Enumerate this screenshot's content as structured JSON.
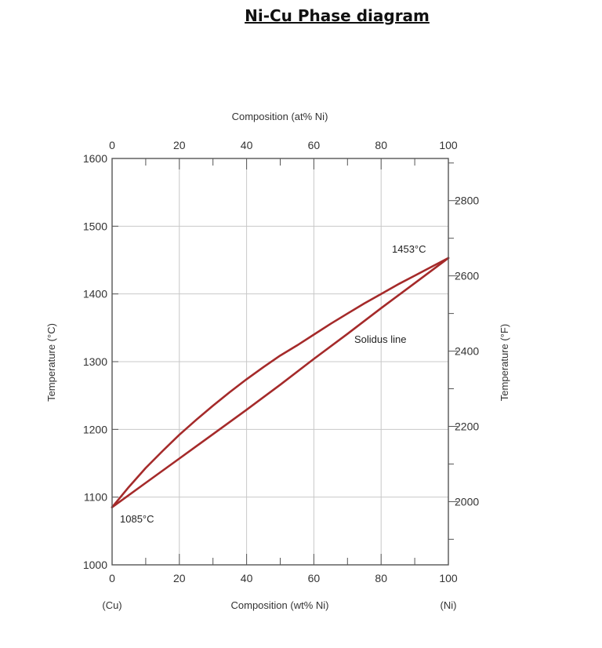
{
  "page": {
    "title": "Ni-Cu Phase diagram"
  },
  "chart_data": {
    "type": "line",
    "title": "Ni-Cu Phase diagram",
    "xlabel_top": "Composition (at% Ni)",
    "xlabel_bottom": "Composition (wt% Ni)",
    "ylabel_left": "Temperature (°C)",
    "ylabel_right": "Temperature (°F)",
    "end_label_left": "(Cu)",
    "end_label_right": "(Ni)",
    "xlim": [
      0,
      100
    ],
    "ylim": [
      1000,
      1600
    ],
    "x_ticks_bottom": [
      "0",
      "20",
      "40",
      "60",
      "80",
      "100"
    ],
    "x_ticks_top": [
      "0",
      "20",
      "40",
      "60",
      "80",
      "100"
    ],
    "y_ticks_left": [
      "1000",
      "1100",
      "1200",
      "1300",
      "1400",
      "1500",
      "1600"
    ],
    "y_ticks_right": [
      "2000",
      "2200",
      "2400",
      "2600",
      "2800"
    ],
    "grid": true,
    "series": [
      {
        "color": "#a52a2a",
        "x": [
          0,
          5,
          10,
          15,
          20,
          25,
          30,
          35,
          40,
          45,
          50,
          55,
          60,
          65,
          70,
          75,
          80,
          85,
          90,
          95,
          100
        ],
        "y": [
          1085,
          1115,
          1143,
          1168,
          1192,
          1214,
          1235,
          1255,
          1274,
          1292,
          1309,
          1324,
          1340,
          1356,
          1371,
          1386,
          1400,
          1414,
          1427,
          1440,
          1453
        ]
      },
      {
        "name": "Solidus line",
        "color": "#a52a2a",
        "x": [
          0,
          10,
          20,
          30,
          40,
          50,
          60,
          70,
          80,
          90,
          100
        ],
        "y": [
          1085,
          1121,
          1157,
          1193,
          1229,
          1266,
          1304,
          1341,
          1379,
          1416,
          1453
        ]
      }
    ],
    "annotations": [
      {
        "text": "1453°C",
        "x": 100,
        "y": 1453
      },
      {
        "text": "1085°C",
        "x": 0,
        "y": 1085
      },
      {
        "text": "Solidus line",
        "x": 78,
        "y": 1325
      }
    ]
  }
}
